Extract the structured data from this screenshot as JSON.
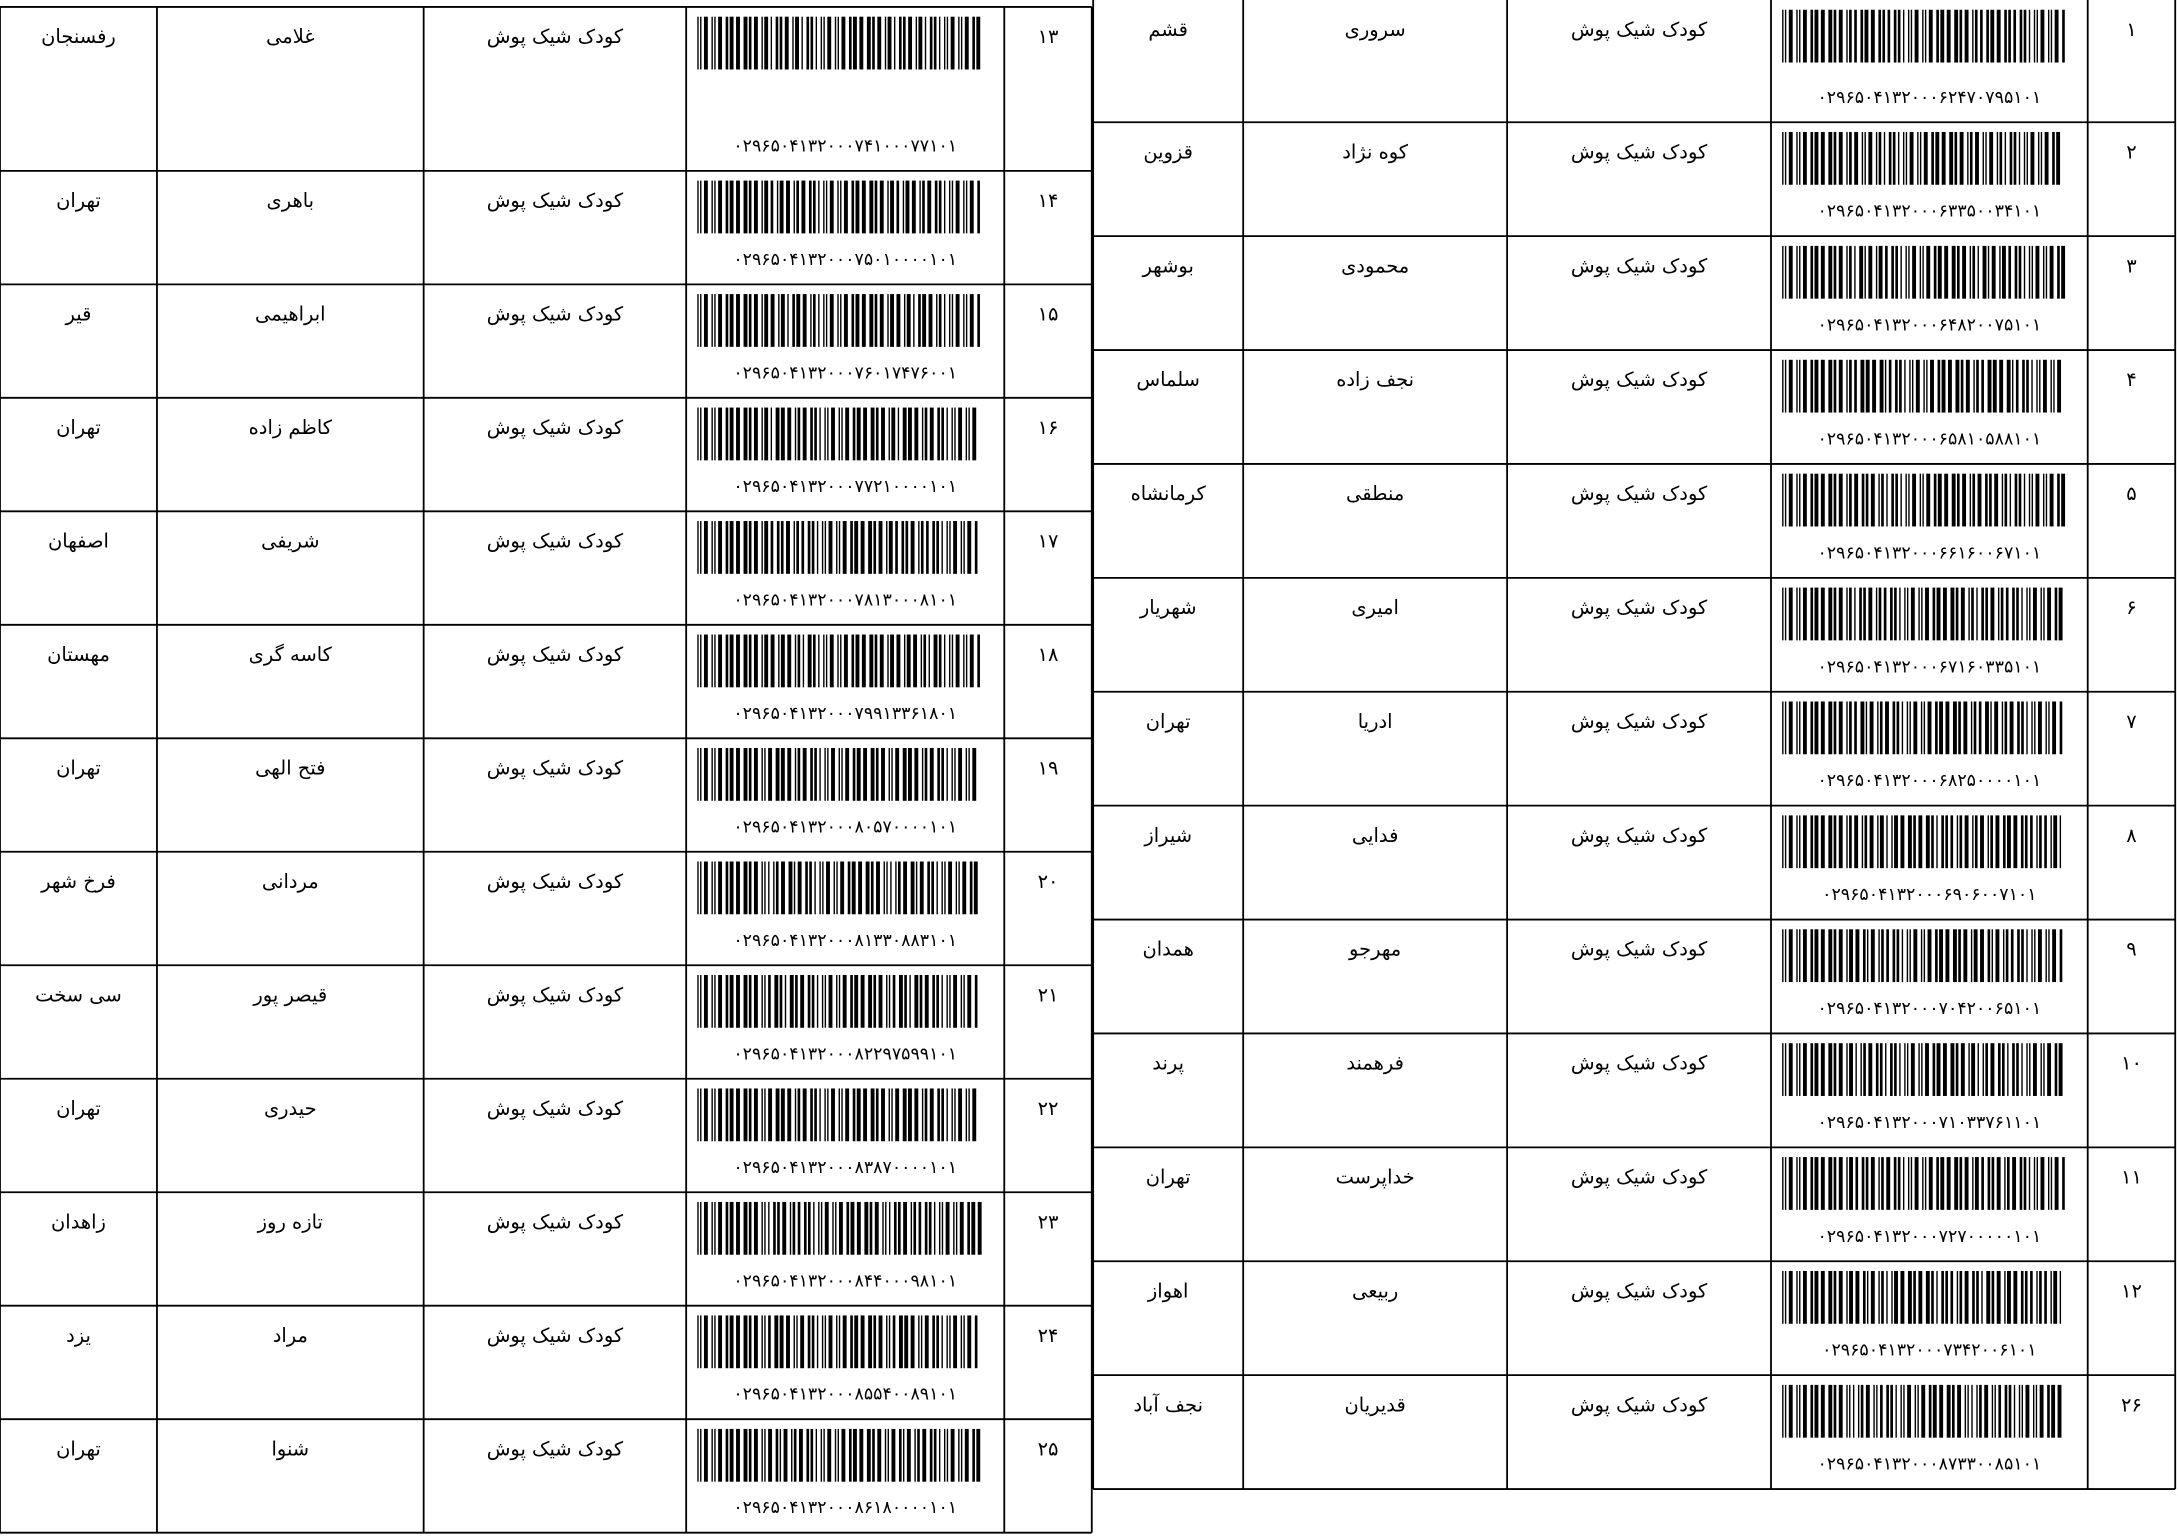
{
  "tables": [
    {
      "rows": [
        {
          "number": "۱۳",
          "barcode": "۰۲۹۶۵۰۴۱۳۲۰۰۰۷۴۱۰۰۰۷۷۱۰۱",
          "product": "کودک شیک پوش",
          "surname": "غلامی",
          "city": "رفسنجان"
        },
        {
          "number": "۱۴",
          "barcode": "۰۲۹۶۵۰۴۱۳۲۰۰۰۷۵۰۱۰۰۰۰۱۰۱",
          "product": "کودک شیک پوش",
          "surname": "باهری",
          "city": "تهران"
        },
        {
          "number": "۱۵",
          "barcode": "۰۲۹۶۵۰۴۱۳۲۰۰۰۷۶۰۱۷۴۷۶۰۰۱",
          "product": "کودک شیک پوش",
          "surname": "ابراهیمی",
          "city": "قیر"
        },
        {
          "number": "۱۶",
          "barcode": "۰۲۹۶۵۰۴۱۳۲۰۰۰۷۷۲۱۰۰۰۰۱۰۱",
          "product": "کودک شیک پوش",
          "surname": "کاظم زاده",
          "city": "تهران"
        },
        {
          "number": "۱۷",
          "barcode": "۰۲۹۶۵۰۴۱۳۲۰۰۰۷۸۱۳۰۰۰۸۱۰۱",
          "product": "کودک شیک پوش",
          "surname": "شریفی",
          "city": "اصفهان"
        },
        {
          "number": "۱۸",
          "barcode": "۰۲۹۶۵۰۴۱۳۲۰۰۰۷۹۹۱۳۳۶۱۸۰۱",
          "product": "کودک شیک پوش",
          "surname": "کاسه گری",
          "city": "مهستان"
        },
        {
          "number": "۱۹",
          "barcode": "۰۲۹۶۵۰۴۱۳۲۰۰۰۸۰۵۷۰۰۰۰۱۰۱",
          "product": "کودک شیک پوش",
          "surname": "فتح الهی",
          "city": "تهران"
        },
        {
          "number": "۲۰",
          "barcode": "۰۲۹۶۵۰۴۱۳۲۰۰۰۸۱۳۳۰۸۸۳۱۰۱",
          "product": "کودک شیک پوش",
          "surname": "مردانی",
          "city": "فرخ شهر"
        },
        {
          "number": "۲۱",
          "barcode": "۰۲۹۶۵۰۴۱۳۲۰۰۰۸۲۲۹۷۵۹۹۱۰۱",
          "product": "کودک شیک پوش",
          "surname": "قیصر پور",
          "city": "سی سخت"
        },
        {
          "number": "۲۲",
          "barcode": "۰۲۹۶۵۰۴۱۳۲۰۰۰۸۳۸۷۰۰۰۰۱۰۱",
          "product": "کودک شیک پوش",
          "surname": "حیدری",
          "city": "تهران"
        },
        {
          "number": "۲۳",
          "barcode": "۰۲۹۶۵۰۴۱۳۲۰۰۰۸۴۴۰۰۰۹۸۱۰۱",
          "product": "کودک شیک پوش",
          "surname": "تازه روز",
          "city": "زاهدان"
        },
        {
          "number": "۲۴",
          "barcode": "۰۲۹۶۵۰۴۱۳۲۰۰۰۸۵۵۴۰۰۸۹۱۰۱",
          "product": "کودک شیک پوش",
          "surname": "مراد",
          "city": "یزد"
        },
        {
          "number": "۲۵",
          "barcode": "۰۲۹۶۵۰۴۱۳۲۰۰۰۸۶۱۸۰۰۰۰۱۰۱",
          "product": "کودک شیک پوش",
          "surname": "شنوا",
          "city": "تهران"
        }
      ]
    },
    {
      "rows": [
        {
          "number": "۱",
          "barcode": "۰۲۹۶۵۰۴۱۳۲۰۰۰۶۲۴۷۰۷۹۵۱۰۱",
          "product": "کودک شیک پوش",
          "surname": "سروری",
          "city": "قشم"
        },
        {
          "number": "۲",
          "barcode": "۰۲۹۶۵۰۴۱۳۲۰۰۰۶۳۳۵۰۰۳۴۱۰۱",
          "product": "کودک شیک پوش",
          "surname": "کوه نژاد",
          "city": "قزوین"
        },
        {
          "number": "۳",
          "barcode": "۰۲۹۶۵۰۴۱۳۲۰۰۰۶۴۸۲۰۰۷۵۱۰۱",
          "product": "کودک شیک پوش",
          "surname": "محمودی",
          "city": "بوشهر"
        },
        {
          "number": "۴",
          "barcode": "۰۲۹۶۵۰۴۱۳۲۰۰۰۶۵۸۱۰۵۸۸۱۰۱",
          "product": "کودک شیک پوش",
          "surname": "نجف زاده",
          "city": "سلماس"
        },
        {
          "number": "۵",
          "barcode": "۰۲۹۶۵۰۴۱۳۲۰۰۰۶۶۱۶۰۰۶۷۱۰۱",
          "product": "کودک شیک پوش",
          "surname": "منطقی",
          "city": "کرمانشاه"
        },
        {
          "number": "۶",
          "barcode": "۰۲۹۶۵۰۴۱۳۲۰۰۰۶۷۱۶۰۳۳۵۱۰۱",
          "product": "کودک شیک پوش",
          "surname": "امیری",
          "city": "شهریار"
        },
        {
          "number": "۷",
          "barcode": "۰۲۹۶۵۰۴۱۳۲۰۰۰۶۸۲۵۰۰۰۰۱۰۱",
          "product": "کودک شیک پوش",
          "surname": "ادریا",
          "city": "تهران"
        },
        {
          "number": "۸",
          "barcode": "۰۲۹۶۵۰۴۱۳۲۰۰۰۶۹۰۶۰۰۷۱۰۱",
          "product": "کودک شیک پوش",
          "surname": "فدایی",
          "city": "شیراز"
        },
        {
          "number": "۹",
          "barcode": "۰۲۹۶۵۰۴۱۳۲۰۰۰۷۰۴۲۰۰۶۵۱۰۱",
          "product": "کودک شیک پوش",
          "surname": "مهرجو",
          "city": "همدان"
        },
        {
          "number": "۱۰",
          "barcode": "۰۲۹۶۵۰۴۱۳۲۰۰۰۷۱۰۳۳۷۶۱۱۰۱",
          "product": "کودک شیک پوش",
          "surname": "فرهمند",
          "city": "پرند"
        },
        {
          "number": "۱۱",
          "barcode": "۰۲۹۶۵۰۴۱۳۲۰۰۰۷۲۷۰۰۰۰۰۱۰۱",
          "product": "کودک شیک پوش",
          "surname": "خداپرست",
          "city": "تهران"
        },
        {
          "number": "۱۲",
          "barcode": "۰۲۹۶۵۰۴۱۳۲۰۰۰۷۳۴۲۰۰۶۱۰۱",
          "product": "کودک شیک پوش",
          "surname": "ربیعی",
          "city": "اهواز"
        },
        {
          "number": "۲۶",
          "barcode": "۰۲۹۶۵۰۴۱۳۲۰۰۰۸۷۳۳۰۰۸۵۱۰۱",
          "product": "کودک شیک پوش",
          "surname": "قدیریان",
          "city": "نجف آباد"
        }
      ]
    }
  ]
}
